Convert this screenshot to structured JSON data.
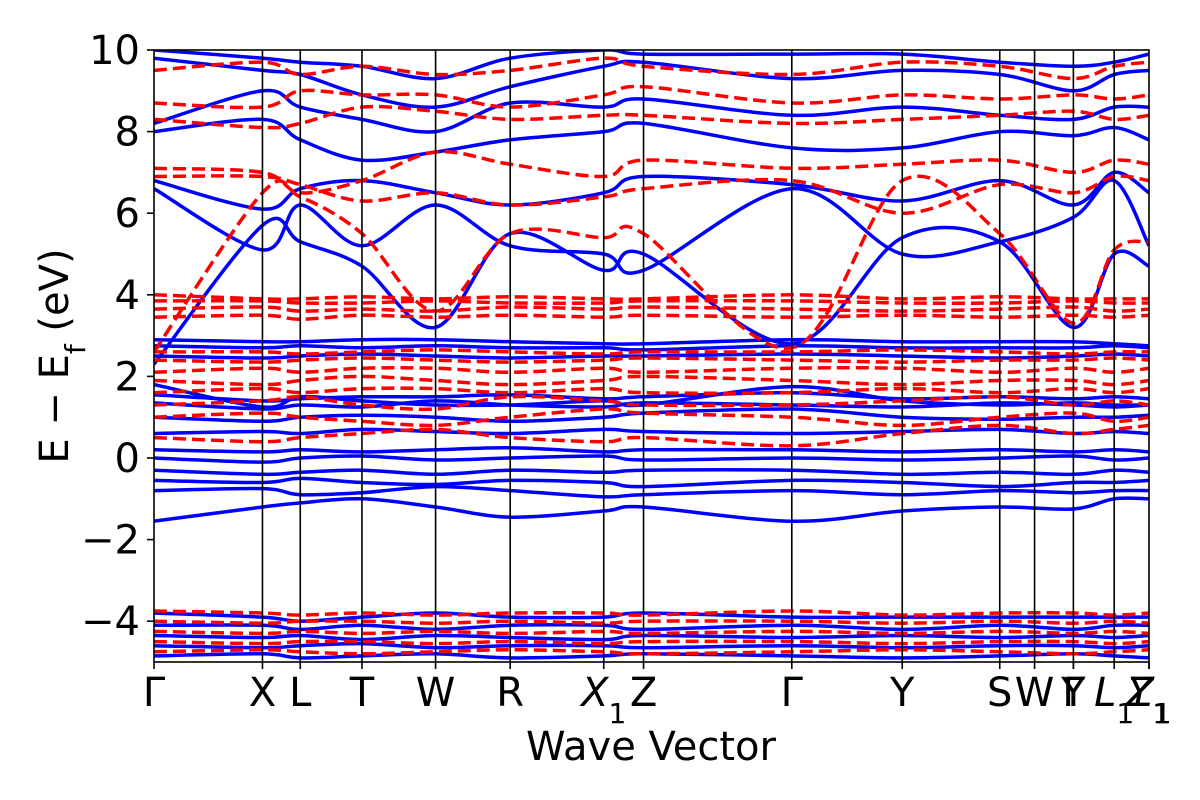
{
  "chart_data": {
    "type": "line",
    "title": "",
    "xlabel": "Wave Vector",
    "ylabel": "E − E_f (eV)",
    "ylabel_parts": {
      "main": "E − E",
      "sub": "f",
      "unit": " (eV)"
    },
    "ylim": [
      -5,
      10
    ],
    "yticks": [
      {
        "value": -4,
        "label": "−4"
      },
      {
        "value": -2,
        "label": "−2"
      },
      {
        "value": 0,
        "label": "0"
      },
      {
        "value": 2,
        "label": "2"
      },
      {
        "value": 4,
        "label": "4"
      },
      {
        "value": 6,
        "label": "6"
      },
      {
        "value": 8,
        "label": "8"
      },
      {
        "value": 10,
        "label": "10"
      }
    ],
    "xlim": [
      0,
      1
    ],
    "kpoints": [
      {
        "label": "Γ",
        "x": 0.0
      },
      {
        "label": "X",
        "x": 0.109
      },
      {
        "label": "L",
        "x": 0.147
      },
      {
        "label": "T",
        "x": 0.209
      },
      {
        "label": "W",
        "x": 0.283
      },
      {
        "label": "R",
        "x": 0.358
      },
      {
        "label": "X",
        "sub": "1",
        "x": 0.452
      },
      {
        "label": "Z",
        "x": 0.492
      },
      {
        "label": "Γ",
        "x": 0.641
      },
      {
        "label": "Y",
        "x": 0.752
      },
      {
        "label": "S",
        "x": 0.85
      },
      {
        "label": "W",
        "x": 0.885
      },
      {
        "label": "Y",
        "x": 0.924
      },
      {
        "label": "Γ",
        "x": 0.924
      },
      {
        "label": "L",
        "sub": "1",
        "x": 0.965
      },
      {
        "label": "Y",
        "sub": "1",
        "x": 1.0
      },
      {
        "label": "Z",
        "sub": "1",
        "x": 1.0
      }
    ],
    "series": [
      {
        "color": "#0000ff",
        "style": "solid",
        "samples_x": [
          0,
          0.109,
          0.147,
          0.209,
          0.283,
          0.358,
          0.452,
          0.492,
          0.641,
          0.752,
          0.85,
          0.924,
          0.965,
          1.0
        ],
        "bands": [
          [
            -1.55,
            -1.2,
            -1.1,
            -1.0,
            -1.2,
            -1.45,
            -1.3,
            -1.2,
            -1.55,
            -1.3,
            -1.2,
            -1.25,
            -1.0,
            -1.0
          ],
          [
            -0.8,
            -0.75,
            -0.9,
            -0.85,
            -0.7,
            -0.8,
            -0.95,
            -0.9,
            -0.8,
            -0.9,
            -0.8,
            -0.85,
            -0.8,
            -0.8
          ],
          [
            -0.55,
            -0.6,
            -0.5,
            -0.6,
            -0.65,
            -0.55,
            -0.6,
            -0.7,
            -0.55,
            -0.6,
            -0.7,
            -0.6,
            -0.6,
            -0.55
          ],
          [
            -0.3,
            -0.4,
            -0.35,
            -0.3,
            -0.4,
            -0.3,
            -0.35,
            -0.3,
            -0.3,
            -0.4,
            -0.35,
            -0.4,
            -0.3,
            -0.35
          ],
          [
            0.0,
            -0.1,
            0.0,
            0.05,
            -0.05,
            0.0,
            0.05,
            -0.05,
            0.0,
            -0.05,
            0.0,
            0.05,
            -0.05,
            0.0
          ],
          [
            0.2,
            0.15,
            0.2,
            0.15,
            0.2,
            0.25,
            0.15,
            0.2,
            0.2,
            0.15,
            0.2,
            0.15,
            0.2,
            0.15
          ],
          [
            0.6,
            0.65,
            0.6,
            0.7,
            0.65,
            0.6,
            0.7,
            0.65,
            0.6,
            0.65,
            0.7,
            0.6,
            0.65,
            0.6
          ],
          [
            1.0,
            0.9,
            1.0,
            1.05,
            1.0,
            0.9,
            1.0,
            1.1,
            1.2,
            1.0,
            0.95,
            1.0,
            1.0,
            1.05
          ],
          [
            1.35,
            1.2,
            1.3,
            1.25,
            1.4,
            1.3,
            1.25,
            1.35,
            1.3,
            1.25,
            1.35,
            1.3,
            1.25,
            1.3
          ],
          [
            1.55,
            1.4,
            1.45,
            1.5,
            1.5,
            1.55,
            1.45,
            1.5,
            1.6,
            1.45,
            1.5,
            1.45,
            1.5,
            1.45
          ],
          [
            1.8,
            1.25,
            1.5,
            1.4,
            1.3,
            1.3,
            1.4,
            1.3,
            1.75,
            1.4,
            1.3,
            1.35,
            1.3,
            1.3
          ],
          [
            2.5,
            2.45,
            2.5,
            2.55,
            2.5,
            2.45,
            2.5,
            2.5,
            2.55,
            2.5,
            2.45,
            2.5,
            2.55,
            2.5
          ],
          [
            2.75,
            2.7,
            2.75,
            2.7,
            2.75,
            2.7,
            2.7,
            2.65,
            2.75,
            2.7,
            2.7,
            2.7,
            2.75,
            2.7
          ],
          [
            2.9,
            2.85,
            2.85,
            2.9,
            2.9,
            2.85,
            2.8,
            2.8,
            2.9,
            2.85,
            2.85,
            2.85,
            2.8,
            2.75
          ],
          [
            2.3,
            5.7,
            5.3,
            4.7,
            3.2,
            5.5,
            4.6,
            5.0,
            2.8,
            5.4,
            5.3,
            3.2,
            5.0,
            4.7
          ],
          [
            6.6,
            5.1,
            6.2,
            5.2,
            6.2,
            5.2,
            5.0,
            4.6,
            6.6,
            5.0,
            5.3,
            5.9,
            6.8,
            5.2
          ],
          [
            6.8,
            6.1,
            6.6,
            6.8,
            6.5,
            6.2,
            6.5,
            6.9,
            6.7,
            6.3,
            6.8,
            6.2,
            7.0,
            6.5
          ],
          [
            8.0,
            8.3,
            7.8,
            7.3,
            7.5,
            7.8,
            8.0,
            8.2,
            7.6,
            7.6,
            8.0,
            7.9,
            8.1,
            7.8
          ],
          [
            8.2,
            9.0,
            8.6,
            8.3,
            8.0,
            8.7,
            8.6,
            8.8,
            8.4,
            8.6,
            8.4,
            8.3,
            8.6,
            8.6
          ],
          [
            9.8,
            9.5,
            9.4,
            8.9,
            8.6,
            9.1,
            9.6,
            9.7,
            9.3,
            9.5,
            9.4,
            9.0,
            9.4,
            9.5
          ],
          [
            10.0,
            9.8,
            9.7,
            9.6,
            9.3,
            9.8,
            10.0,
            9.9,
            9.9,
            9.9,
            9.7,
            9.6,
            9.7,
            9.9
          ],
          [
            -3.8,
            -3.9,
            -4.0,
            -3.9,
            -3.8,
            -3.9,
            -3.9,
            -3.8,
            -3.9,
            -3.9,
            -3.9,
            -3.9,
            -3.9,
            -3.9
          ],
          [
            -4.1,
            -4.1,
            -4.2,
            -4.1,
            -4.2,
            -4.1,
            -4.1,
            -4.2,
            -4.1,
            -4.2,
            -4.1,
            -4.2,
            -4.1,
            -4.1
          ],
          [
            -4.35,
            -4.4,
            -4.35,
            -4.45,
            -4.35,
            -4.4,
            -4.45,
            -4.35,
            -4.4,
            -4.35,
            -4.4,
            -4.35,
            -4.4,
            -4.35
          ],
          [
            -4.6,
            -4.65,
            -4.6,
            -4.55,
            -4.65,
            -4.6,
            -4.6,
            -4.65,
            -4.6,
            -4.65,
            -4.6,
            -4.6,
            -4.65,
            -4.6
          ],
          [
            -4.85,
            -4.8,
            -4.9,
            -4.85,
            -4.8,
            -4.9,
            -4.85,
            -4.8,
            -4.85,
            -4.9,
            -4.85,
            -4.8,
            -4.85,
            -4.9
          ]
        ]
      },
      {
        "color": "#ff0000",
        "style": "dashed",
        "samples_x": [
          0,
          0.109,
          0.147,
          0.209,
          0.283,
          0.358,
          0.452,
          0.492,
          0.641,
          0.752,
          0.85,
          0.924,
          0.965,
          1.0
        ],
        "bands": [
          [
            0.5,
            0.4,
            0.5,
            0.6,
            0.7,
            0.5,
            0.4,
            0.5,
            0.3,
            0.6,
            0.8,
            0.6,
            0.7,
            0.8
          ],
          [
            1.0,
            1.1,
            1.0,
            0.9,
            0.8,
            1.0,
            1.2,
            1.1,
            1.0,
            0.8,
            1.0,
            1.1,
            0.9,
            1.0
          ],
          [
            1.3,
            1.4,
            1.5,
            1.3,
            1.2,
            1.5,
            1.4,
            1.3,
            1.3,
            1.4,
            1.5,
            1.3,
            1.4,
            1.3
          ],
          [
            1.6,
            1.7,
            1.6,
            1.7,
            1.7,
            1.6,
            1.7,
            1.6,
            1.6,
            1.7,
            1.6,
            1.7,
            1.6,
            1.7
          ],
          [
            1.9,
            1.8,
            1.9,
            2.0,
            1.9,
            1.8,
            1.9,
            2.0,
            1.9,
            1.8,
            1.9,
            1.9,
            1.8,
            1.9
          ],
          [
            2.1,
            2.2,
            2.1,
            2.2,
            2.2,
            2.1,
            2.2,
            2.1,
            2.2,
            2.2,
            2.1,
            2.2,
            2.1,
            2.2
          ],
          [
            2.4,
            2.35,
            2.4,
            2.45,
            2.4,
            2.35,
            2.4,
            2.45,
            2.4,
            2.35,
            2.4,
            2.4,
            2.45,
            2.4
          ],
          [
            2.6,
            2.6,
            2.55,
            2.6,
            2.65,
            2.6,
            2.55,
            2.6,
            2.6,
            2.65,
            2.6,
            2.55,
            2.6,
            2.6
          ],
          [
            3.45,
            3.5,
            3.4,
            3.5,
            3.45,
            3.5,
            3.45,
            3.5,
            3.45,
            3.5,
            3.45,
            3.5,
            3.45,
            3.5
          ],
          [
            3.65,
            3.7,
            3.6,
            3.65,
            3.6,
            3.7,
            3.65,
            3.7,
            3.65,
            3.6,
            3.65,
            3.7,
            3.6,
            3.65
          ],
          [
            3.85,
            3.85,
            3.8,
            3.8,
            3.85,
            3.8,
            3.8,
            3.85,
            3.85,
            3.8,
            3.8,
            3.85,
            3.8,
            3.8
          ],
          [
            4.0,
            3.9,
            3.9,
            3.95,
            3.9,
            3.95,
            3.9,
            3.9,
            4.0,
            3.9,
            3.95,
            3.9,
            3.9,
            3.9
          ],
          [
            2.6,
            6.5,
            6.4,
            5.5,
            3.6,
            5.5,
            5.4,
            5.5,
            2.7,
            6.8,
            5.5,
            3.3,
            5.1,
            5.3
          ],
          [
            6.9,
            6.9,
            6.7,
            6.3,
            6.5,
            6.2,
            6.4,
            6.6,
            6.8,
            6.0,
            6.7,
            6.5,
            6.9,
            6.8
          ],
          [
            7.1,
            7.0,
            6.5,
            6.8,
            7.5,
            7.2,
            6.9,
            7.3,
            7.1,
            7.2,
            7.3,
            7.0,
            7.3,
            7.2
          ],
          [
            8.3,
            8.1,
            8.2,
            8.6,
            8.5,
            8.3,
            8.4,
            8.4,
            8.2,
            8.3,
            8.4,
            8.5,
            8.3,
            8.4
          ],
          [
            8.7,
            8.6,
            9.0,
            8.9,
            8.9,
            8.6,
            8.9,
            9.1,
            8.7,
            8.9,
            8.8,
            8.9,
            8.8,
            8.9
          ],
          [
            9.5,
            9.7,
            9.4,
            9.6,
            9.4,
            9.5,
            9.8,
            9.6,
            9.4,
            9.7,
            9.6,
            9.3,
            9.6,
            9.7
          ],
          [
            -3.75,
            -3.8,
            -3.85,
            -3.8,
            -3.85,
            -3.8,
            -3.8,
            -3.85,
            -3.75,
            -3.85,
            -3.8,
            -3.8,
            -3.85,
            -3.8
          ],
          [
            -4.0,
            -4.05,
            -4.0,
            -4.0,
            -4.05,
            -4.0,
            -4.05,
            -4.0,
            -4.0,
            -4.05,
            -4.0,
            -4.05,
            -4.0,
            -4.05
          ],
          [
            -4.25,
            -4.3,
            -4.25,
            -4.3,
            -4.25,
            -4.3,
            -4.25,
            -4.3,
            -4.25,
            -4.3,
            -4.25,
            -4.3,
            -4.25,
            -4.3
          ],
          [
            -4.5,
            -4.55,
            -4.5,
            -4.5,
            -4.55,
            -4.5,
            -4.55,
            -4.5,
            -4.5,
            -4.55,
            -4.5,
            -4.5,
            -4.55,
            -4.5
          ],
          [
            -4.75,
            -4.7,
            -4.75,
            -4.8,
            -4.75,
            -4.7,
            -4.75,
            -4.8,
            -4.75,
            -4.7,
            -4.75,
            -4.8,
            -4.75,
            -4.7
          ]
        ]
      }
    ]
  }
}
